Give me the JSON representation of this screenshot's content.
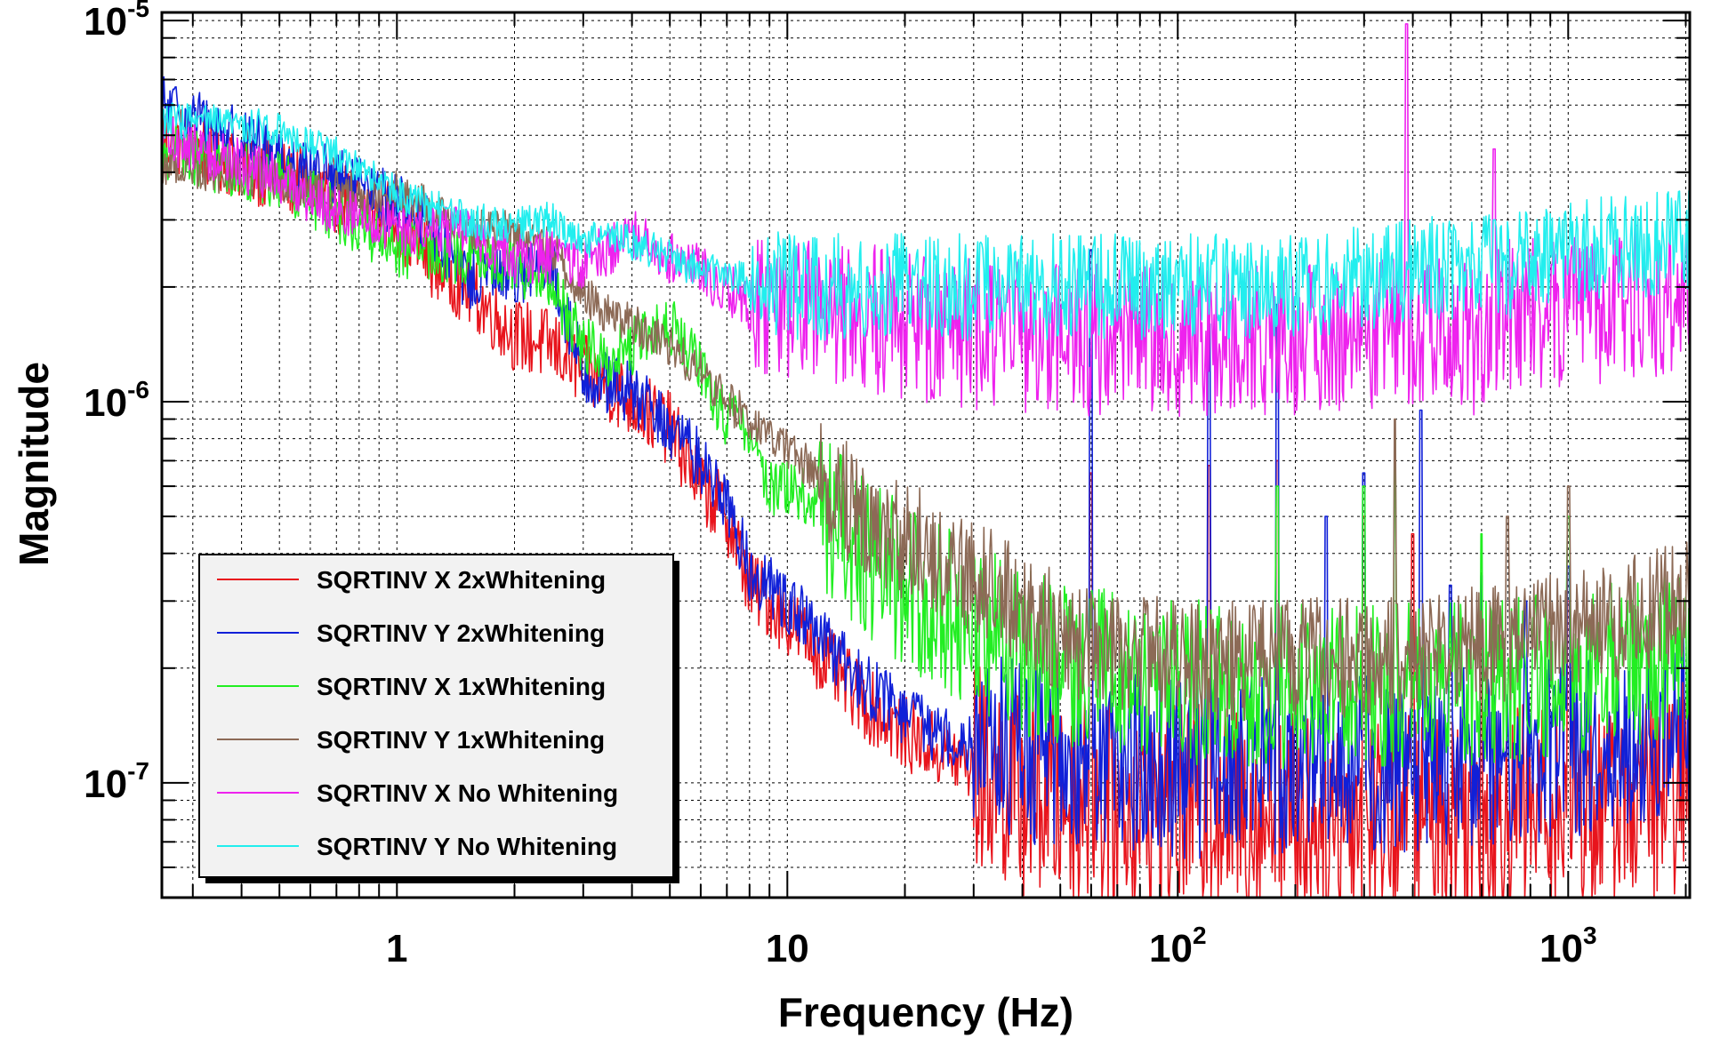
{
  "chart_data": {
    "type": "line",
    "xlabel": "Frequency (Hz)",
    "ylabel": "Magnitude",
    "x_scale": "log",
    "y_scale": "log",
    "xlim": [
      0.25,
      2048
    ],
    "ylim": [
      5e-08,
      1.05e-05
    ],
    "grid": true,
    "legend_position": "bottom-left",
    "x_tick_labels": [
      {
        "value": 1,
        "base": "1",
        "exp": ""
      },
      {
        "value": 10,
        "base": "10",
        "exp": ""
      },
      {
        "value": 100,
        "base": "10",
        "exp": "2"
      },
      {
        "value": 1000,
        "base": "10",
        "exp": "3"
      }
    ],
    "y_tick_labels": [
      {
        "value": 1e-07,
        "base": "10",
        "exp": "-7"
      },
      {
        "value": 1e-06,
        "base": "10",
        "exp": "-6"
      },
      {
        "value": 1e-05,
        "base": "10",
        "exp": "-5"
      }
    ],
    "series": [
      {
        "name": "SQRTINV X 2xWhitening",
        "color": "#e8141c",
        "points": [
          [
            0.25,
            5e-06
          ],
          [
            0.5,
            3.9e-06
          ],
          [
            0.8,
            3.3e-06
          ],
          [
            1,
            3e-06
          ],
          [
            1.2,
            2.4e-06
          ],
          [
            1.5,
            2e-06
          ],
          [
            2,
            1.5e-06
          ],
          [
            2.5,
            1.4e-06
          ],
          [
            3,
            1.2e-06
          ],
          [
            3.5,
            1.1e-06
          ],
          [
            4,
            1e-06
          ],
          [
            5,
            8.5e-07
          ],
          [
            6,
            6e-07
          ],
          [
            7,
            5e-07
          ],
          [
            8,
            3.3e-07
          ],
          [
            10,
            2.7e-07
          ],
          [
            13,
            2e-07
          ],
          [
            16,
            1.6e-07
          ],
          [
            20,
            1.35e-07
          ],
          [
            25,
            1.2e-07
          ],
          [
            30,
            1.1e-07
          ],
          [
            40,
            9.5e-08
          ],
          [
            60,
            8.8e-08
          ],
          [
            100,
            8.5e-08
          ],
          [
            200,
            8.3e-08
          ],
          [
            400,
            8.3e-08
          ],
          [
            800,
            8.5e-08
          ],
          [
            1200,
            8.8e-08
          ],
          [
            1600,
            9.2e-08
          ],
          [
            2048,
            1e-07
          ]
        ],
        "noise": 0.28,
        "noise_start_hz": 30,
        "peaks": [
          [
            60,
            6.5e-07
          ],
          [
            120,
            6.8e-07
          ],
          [
            180,
            7e-07
          ],
          [
            300,
            5e-07
          ],
          [
            400,
            4.5e-07
          ],
          [
            600,
            3.5e-07
          ],
          [
            1000,
            3e-07
          ]
        ]
      },
      {
        "name": "SQRTINV Y 2xWhitening",
        "color": "#1020d8",
        "points": [
          [
            0.25,
            6e-06
          ],
          [
            0.5,
            4.4e-06
          ],
          [
            0.8,
            3.6e-06
          ],
          [
            1,
            3.3e-06
          ],
          [
            1.2,
            3e-06
          ],
          [
            1.5,
            2.1e-06
          ],
          [
            2,
            2.2e-06
          ],
          [
            2.5,
            2.2e-06
          ],
          [
            3,
            1.2e-06
          ],
          [
            3.5,
            1.1e-06
          ],
          [
            4,
            1.05e-06
          ],
          [
            5,
            8.5e-07
          ],
          [
            6,
            7e-07
          ],
          [
            7,
            5.5e-07
          ],
          [
            8,
            3.6e-07
          ],
          [
            10,
            3e-07
          ],
          [
            13,
            2.2e-07
          ],
          [
            16,
            1.8e-07
          ],
          [
            20,
            1.5e-07
          ],
          [
            25,
            1.35e-07
          ],
          [
            30,
            1.3e-07
          ],
          [
            40,
            1.2e-07
          ],
          [
            60,
            1.15e-07
          ],
          [
            100,
            1.1e-07
          ],
          [
            200,
            1.1e-07
          ],
          [
            400,
            1.12e-07
          ],
          [
            800,
            1.2e-07
          ],
          [
            1200,
            1.25e-07
          ],
          [
            1600,
            1.35e-07
          ],
          [
            2048,
            1.5e-07
          ]
        ],
        "noise": 0.24,
        "noise_start_hz": 30,
        "peaks": [
          [
            60,
            2.5e-06
          ],
          [
            120,
            1.6e-06
          ],
          [
            180,
            1.8e-06
          ],
          [
            240,
            5e-07
          ],
          [
            300,
            6.5e-07
          ],
          [
            420,
            9.5e-07
          ],
          [
            500,
            3.3e-07
          ],
          [
            600,
            3.5e-07
          ],
          [
            780,
            3e-07
          ],
          [
            1000,
            3.7e-07
          ]
        ]
      },
      {
        "name": "SQRTINV X 1xWhitening",
        "color": "#22ee22",
        "points": [
          [
            0.25,
            4.6e-06
          ],
          [
            0.5,
            3.8e-06
          ],
          [
            0.8,
            2.9e-06
          ],
          [
            1,
            2.5e-06
          ],
          [
            1.5,
            2.4e-06
          ],
          [
            2,
            2.3e-06
          ],
          [
            2.5,
            2e-06
          ],
          [
            3,
            1.4e-06
          ],
          [
            3.5,
            1.3e-06
          ],
          [
            4,
            1.4e-06
          ],
          [
            5,
            1.6e-06
          ],
          [
            6,
            1.2e-06
          ],
          [
            7,
            9e-07
          ],
          [
            8,
            8.5e-07
          ],
          [
            9,
            6e-07
          ],
          [
            10,
            6e-07
          ],
          [
            13,
            5e-07
          ],
          [
            16,
            4e-07
          ],
          [
            20,
            3.3e-07
          ],
          [
            30,
            2.6e-07
          ],
          [
            40,
            2.2e-07
          ],
          [
            60,
            2e-07
          ],
          [
            100,
            1.85e-07
          ],
          [
            200,
            1.8e-07
          ],
          [
            400,
            1.8e-07
          ],
          [
            800,
            1.9e-07
          ],
          [
            1200,
            2e-07
          ],
          [
            2048,
            2.2e-07
          ]
        ],
        "noise": 0.22,
        "noise_start_hz": 12,
        "peaks": [
          [
            180,
            6e-07
          ],
          [
            300,
            6e-07
          ],
          [
            360,
            8e-07
          ],
          [
            600,
            4.5e-07
          ],
          [
            1000,
            5e-07
          ]
        ]
      },
      {
        "name": "SQRTINV Y 1xWhitening",
        "color": "#8c6a56",
        "points": [
          [
            0.25,
            4.2e-06
          ],
          [
            0.5,
            3.8e-06
          ],
          [
            0.8,
            3.5e-06
          ],
          [
            1,
            3.6e-06
          ],
          [
            1.5,
            2.8e-06
          ],
          [
            2,
            2.8e-06
          ],
          [
            2.5,
            2.5e-06
          ],
          [
            3,
            1.9e-06
          ],
          [
            3.5,
            1.7e-06
          ],
          [
            4,
            1.6e-06
          ],
          [
            5,
            1.4e-06
          ],
          [
            6,
            1.2e-06
          ],
          [
            7,
            1e-06
          ],
          [
            8,
            9e-07
          ],
          [
            10,
            7.5e-07
          ],
          [
            13,
            6e-07
          ],
          [
            16,
            5e-07
          ],
          [
            20,
            4.3e-07
          ],
          [
            30,
            3.5e-07
          ],
          [
            40,
            2.8e-07
          ],
          [
            60,
            2.3e-07
          ],
          [
            100,
            2.1e-07
          ],
          [
            200,
            2.1e-07
          ],
          [
            400,
            2.2e-07
          ],
          [
            800,
            2.4e-07
          ],
          [
            1200,
            2.6e-07
          ],
          [
            2048,
            3e-07
          ]
        ],
        "noise": 0.16,
        "noise_start_hz": 12,
        "peaks": [
          [
            360,
            9e-07
          ],
          [
            700,
            5e-07
          ],
          [
            1000,
            6e-07
          ]
        ]
      },
      {
        "name": "SQRTINV X No Whitening",
        "color": "#ee22ee",
        "points": [
          [
            0.25,
            5e-06
          ],
          [
            0.5,
            3.8e-06
          ],
          [
            0.8,
            3e-06
          ],
          [
            1,
            2.8e-06
          ],
          [
            1.5,
            2.8e-06
          ],
          [
            2,
            2.4e-06
          ],
          [
            2.5,
            2.4e-06
          ],
          [
            3,
            2.3e-06
          ],
          [
            3.5,
            2.5e-06
          ],
          [
            4,
            2.8e-06
          ],
          [
            5,
            2.4e-06
          ],
          [
            6,
            2.2e-06
          ],
          [
            8,
            1.8e-06
          ],
          [
            10,
            1.7e-06
          ],
          [
            15,
            1.7e-06
          ],
          [
            20,
            1.6e-06
          ],
          [
            30,
            1.5e-06
          ],
          [
            60,
            1.45e-06
          ],
          [
            100,
            1.45e-06
          ],
          [
            200,
            1.45e-06
          ],
          [
            370,
            1.5e-06
          ],
          [
            400,
            1.55e-06
          ],
          [
            600,
            1.45e-06
          ],
          [
            700,
            1.7e-06
          ],
          [
            1000,
            1.7e-06
          ],
          [
            1500,
            1.75e-06
          ],
          [
            2048,
            1.85e-06
          ]
        ],
        "noise": 0.2,
        "noise_start_hz": 8,
        "peaks": [
          [
            385,
            9.8e-06
          ],
          [
            645,
            4.6e-06
          ],
          [
            1500,
            2.9e-06
          ]
        ]
      },
      {
        "name": "SQRTINV Y No Whitening",
        "color": "#22eeee",
        "points": [
          [
            0.25,
            5.5e-06
          ],
          [
            0.5,
            5.2e-06
          ],
          [
            0.8,
            4.2e-06
          ],
          [
            1,
            3.5e-06
          ],
          [
            1.5,
            3e-06
          ],
          [
            2,
            2.9e-06
          ],
          [
            2.5,
            3e-06
          ],
          [
            3,
            2.6e-06
          ],
          [
            3.5,
            2.8e-06
          ],
          [
            4,
            2.6e-06
          ],
          [
            5,
            2.4e-06
          ],
          [
            6,
            2.2e-06
          ],
          [
            8,
            2.1e-06
          ],
          [
            10,
            2e-06
          ],
          [
            20,
            2e-06
          ],
          [
            50,
            2e-06
          ],
          [
            100,
            2e-06
          ],
          [
            200,
            2e-06
          ],
          [
            400,
            2.2e-06
          ],
          [
            800,
            2.3e-06
          ],
          [
            1200,
            2.5e-06
          ],
          [
            2048,
            2.7e-06
          ]
        ],
        "noise": 0.14,
        "noise_start_hz": 8,
        "peaks": [
          [
            645,
            3e-06
          ],
          [
            1800,
            3.5e-06
          ]
        ]
      }
    ]
  }
}
